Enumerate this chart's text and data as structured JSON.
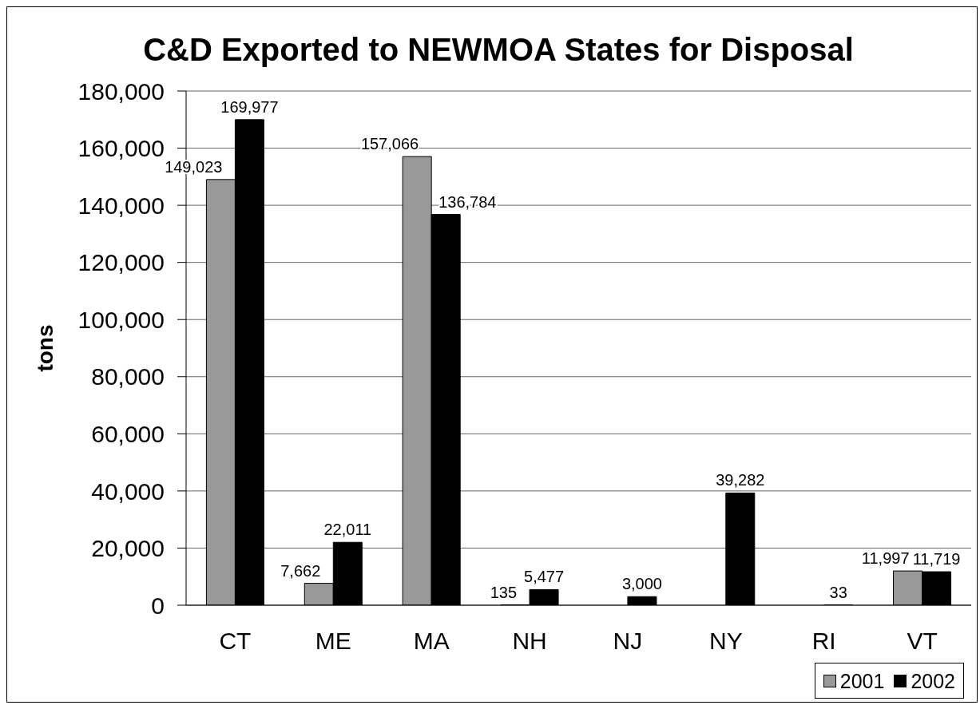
{
  "chart_data": {
    "type": "bar",
    "title": "C&D Exported to NEWMOA States for Disposal",
    "ylabel": "tons",
    "categories": [
      "CT",
      "ME",
      "MA",
      "NH",
      "NJ",
      "NY",
      "RI",
      "VT"
    ],
    "series": [
      {
        "name": "2001",
        "color": "#999999",
        "values": [
          149023,
          7662,
          157066,
          135,
          null,
          null,
          null,
          11997
        ],
        "value_labels": [
          "149,023",
          "7,662",
          "157,066",
          "135",
          null,
          null,
          null,
          "11,997"
        ]
      },
      {
        "name": "2002",
        "color": "#000000",
        "values": [
          169977,
          22011,
          136784,
          5477,
          3000,
          39282,
          33,
          11719
        ],
        "value_labels": [
          "169,977",
          "22,011",
          "136,784",
          "5,477",
          "3,000",
          "39,282",
          "33",
          "11,719"
        ]
      }
    ],
    "ylim": [
      0,
      180000
    ],
    "yticks": [
      0,
      {
        "value": 20000,
        "label": "20,000"
      },
      {
        "value": 40000,
        "label": "40,000"
      },
      {
        "value": 60000,
        "label": "60,000"
      },
      {
        "value": 80000,
        "label": "80,000"
      },
      {
        "value": 100000,
        "label": "100,000"
      },
      {
        "value": 120000,
        "label": "120,000"
      },
      {
        "value": 140000,
        "label": "140,000"
      },
      {
        "value": 160000,
        "label": "160,000"
      },
      {
        "value": 180000,
        "label": "180,000"
      }
    ],
    "grid": "y",
    "legend": "bottom right"
  }
}
